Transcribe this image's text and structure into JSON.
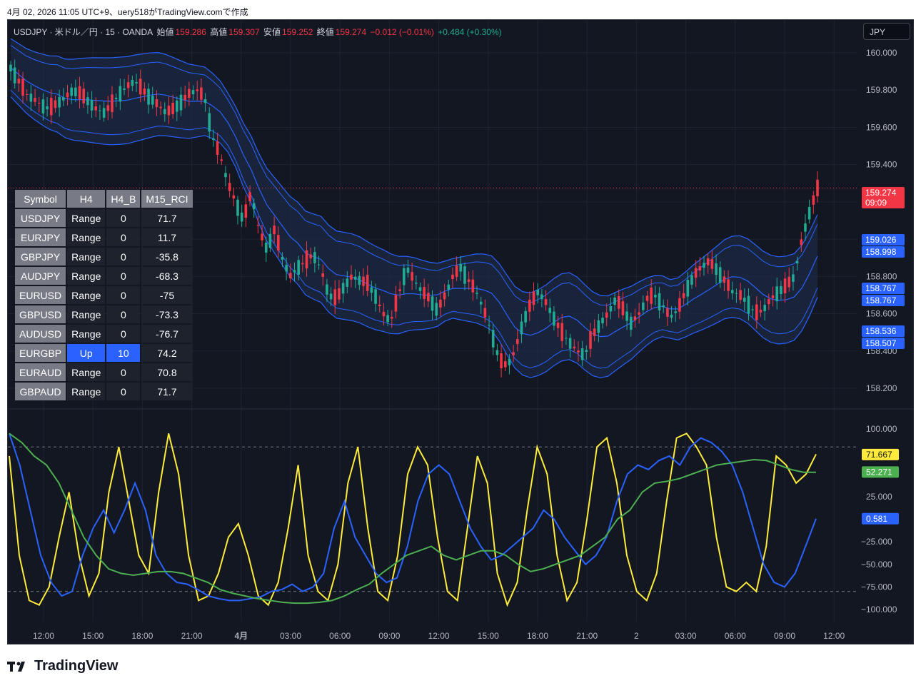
{
  "caption": "4月 02, 2026 11:05 UTC+9、uery518がTradingView.comで作成",
  "legend": {
    "symbol": "USDJPY · 米ドル／円 · 15 · OANDA",
    "open_label": "始値",
    "open": "159.286",
    "high_label": "高値",
    "high": "159.307",
    "low_label": "安値",
    "low": "159.252",
    "close_label": "終値",
    "close": "159.274",
    "change": "−0.012 (−0.01%)",
    "change2": "+0.484 (+0.30%)"
  },
  "currency_button": "JPY",
  "colors": {
    "up": "#22ab94",
    "down": "#f23645",
    "band": "#2962ff",
    "rci_fast": "#ffeb3b",
    "rci_mid": "#2962ff",
    "rci_slow": "#4caf50",
    "bg": "#131722"
  },
  "price_axis": {
    "labels": [
      "160.000",
      "159.800",
      "159.600",
      "159.400",
      "158.800",
      "158.600",
      "158.400",
      "158.200"
    ]
  },
  "price_tags": [
    {
      "value": "159.274",
      "sub": "09:09",
      "color": "#f23645"
    },
    {
      "value": "159.026",
      "color": "#2962ff"
    },
    {
      "value": "158.998",
      "color": "#2962ff"
    },
    {
      "value": "158.767",
      "color": "#2962ff"
    },
    {
      "value": "158.767",
      "color": "#2962ff"
    },
    {
      "value": "158.536",
      "color": "#2962ff"
    },
    {
      "value": "158.507",
      "color": "#2962ff"
    }
  ],
  "rci_axis": {
    "labels": [
      "100.000",
      "25.000",
      "−25.000",
      "−50.000",
      "−75.000",
      "−100.000"
    ]
  },
  "rci_tags": [
    {
      "value": "71.667",
      "color": "#ffeb3b",
      "text_color": "#131722"
    },
    {
      "value": "52.271",
      "color": "#4caf50",
      "text_color": "#ffffff"
    },
    {
      "value": "0.581",
      "color": "#2962ff",
      "text_color": "#ffffff"
    }
  ],
  "time_axis": {
    "labels": [
      "12:00",
      "15:00",
      "18:00",
      "21:00",
      "4月",
      "03:00",
      "06:00",
      "09:00",
      "12:00",
      "15:00",
      "18:00",
      "21:00",
      "2",
      "03:00",
      "06:00",
      "09:00",
      "12:00"
    ]
  },
  "table": {
    "headers": [
      "Symbol",
      "H4",
      "H4_B",
      "M15_RCI"
    ],
    "rows": [
      [
        "USDJPY",
        "Range",
        "0",
        "71.7"
      ],
      [
        "EURJPY",
        "Range",
        "0",
        "11.7"
      ],
      [
        "GBPJPY",
        "Range",
        "0",
        "-35.8"
      ],
      [
        "AUDJPY",
        "Range",
        "0",
        "-68.3"
      ],
      [
        "EURUSD",
        "Range",
        "0",
        "-75"
      ],
      [
        "GBPUSD",
        "Range",
        "0",
        "-73.3"
      ],
      [
        "AUDUSD",
        "Range",
        "0",
        "-76.7"
      ],
      [
        "EURGBP",
        "Up",
        "10",
        "74.2"
      ],
      [
        "EURAUD",
        "Range",
        "0",
        "70.8"
      ],
      [
        "GBPAUD",
        "Range",
        "0",
        "71.7"
      ]
    ]
  },
  "logo_text": "TradingView",
  "chart_data": [
    {
      "type": "candlestick",
      "title": "USDJPY · 米ドル／円 · 15 · OANDA",
      "ylim": [
        158.1,
        160.1
      ],
      "x": [
        "12:00",
        "15:00",
        "18:00",
        "21:00",
        "4月",
        "03:00",
        "06:00",
        "09:00",
        "12:00",
        "15:00",
        "18:00",
        "21:00",
        "2",
        "03:00",
        "06:00",
        "09:00",
        "12:00"
      ],
      "close_path": [
        159.92,
        159.85,
        159.78,
        159.75,
        159.72,
        159.7,
        159.73,
        159.76,
        159.8,
        159.78,
        159.74,
        159.7,
        159.68,
        159.72,
        159.78,
        159.82,
        159.85,
        159.8,
        159.76,
        159.72,
        159.68,
        159.7,
        159.74,
        159.78,
        159.8,
        159.76,
        159.55,
        159.45,
        159.3,
        159.2,
        159.1,
        159.25,
        159.05,
        158.95,
        159.05,
        158.9,
        158.8,
        158.85,
        158.88,
        158.92,
        158.84,
        158.7,
        158.68,
        158.75,
        158.8,
        158.78,
        158.76,
        158.7,
        158.6,
        158.56,
        158.7,
        158.85,
        158.78,
        158.72,
        158.68,
        158.62,
        158.7,
        158.8,
        158.85,
        158.78,
        158.72,
        158.62,
        158.5,
        158.35,
        158.32,
        158.4,
        158.55,
        158.65,
        158.72,
        158.66,
        158.58,
        158.5,
        158.45,
        158.4,
        158.38,
        158.48,
        158.55,
        158.6,
        158.68,
        158.62,
        158.55,
        158.6,
        158.68,
        158.7,
        158.65,
        158.58,
        158.62,
        158.72,
        158.8,
        158.85,
        158.88,
        158.84,
        158.78,
        158.72,
        158.7,
        158.66,
        158.6,
        158.62,
        158.68,
        158.72,
        158.75,
        158.8,
        159.0,
        159.15,
        159.27
      ],
      "series": [
        {
          "name": "",
          "kind": "bands",
          "upper2": [
            159.97,
            159.95,
            159.92,
            159.9,
            159.88,
            159.82,
            159.62,
            159.42,
            159.15,
            158.98,
            158.92,
            158.9,
            158.88,
            158.85,
            158.82,
            158.78,
            158.72,
            158.7,
            158.72,
            158.74,
            158.72,
            158.68,
            158.62,
            158.55,
            158.5,
            158.48,
            158.46,
            158.45,
            158.45,
            158.46,
            158.48,
            158.52,
            158.58,
            158.66,
            158.75,
            158.88,
            158.95,
            158.99,
            159.0,
            159.02
          ]
        }
      ]
    },
    {
      "type": "line",
      "ylim": [
        -100,
        100
      ],
      "series": [
        {
          "name": "",
          "color": "#ffeb3b",
          "values": [
            70,
            -40,
            -90,
            -95,
            -75,
            -20,
            30,
            -40,
            -85,
            -60,
            30,
            80,
            20,
            -40,
            -60,
            30,
            95,
            50,
            -40,
            -90,
            -85,
            -60,
            -20,
            -5,
            -40,
            -85,
            -95,
            -70,
            -10,
            60,
            -40,
            -80,
            -90,
            -50,
            40,
            80,
            -10,
            -80,
            -90,
            -40,
            50,
            80,
            60,
            -20,
            -80,
            -90,
            -10,
            70,
            40,
            -60,
            -95,
            -70,
            10,
            80,
            50,
            -40,
            -90,
            -70,
            0,
            80,
            90,
            40,
            -40,
            -80,
            -90,
            -60,
            20,
            90,
            95,
            80,
            60,
            -20,
            -75,
            -80,
            -70,
            -80,
            -30,
            70,
            60,
            40,
            50,
            72
          ]
        },
        {
          "name": "",
          "color": "#2962ff",
          "values": [
            95,
            60,
            10,
            -40,
            -70,
            -85,
            -80,
            -40,
            -10,
            10,
            -15,
            10,
            40,
            10,
            -40,
            -60,
            -70,
            -72,
            -78,
            -85,
            -88,
            -90,
            -90,
            -88,
            -86,
            -80,
            -78,
            -72,
            -80,
            -75,
            -60,
            -10,
            20,
            -20,
            -40,
            -60,
            -70,
            -65,
            -30,
            20,
            50,
            60,
            50,
            20,
            -10,
            -30,
            -45,
            -40,
            -30,
            -20,
            -10,
            10,
            0,
            -20,
            -35,
            -50,
            -40,
            -20,
            20,
            50,
            60,
            55,
            65,
            70,
            60,
            80,
            90,
            85,
            75,
            60,
            30,
            -10,
            -50,
            -70,
            -75,
            -60,
            -30,
            0.6
          ]
        },
        {
          "name": "",
          "color": "#4caf50",
          "values": [
            95,
            85,
            70,
            60,
            40,
            10,
            -20,
            -40,
            -55,
            -60,
            -62,
            -60,
            -58,
            -58,
            -60,
            -65,
            -70,
            -78,
            -82,
            -85,
            -88,
            -90,
            -92,
            -93,
            -93,
            -92,
            -90,
            -85,
            -78,
            -72,
            -60,
            -50,
            -40,
            -35,
            -30,
            -40,
            -45,
            -40,
            -35,
            -35,
            -40,
            -50,
            -58,
            -55,
            -50,
            -45,
            -40,
            -30,
            -20,
            0,
            10,
            30,
            40,
            42,
            45,
            50,
            55,
            60,
            62,
            64,
            66,
            65,
            60,
            55,
            52,
            52
          ]
        }
      ]
    }
  ]
}
